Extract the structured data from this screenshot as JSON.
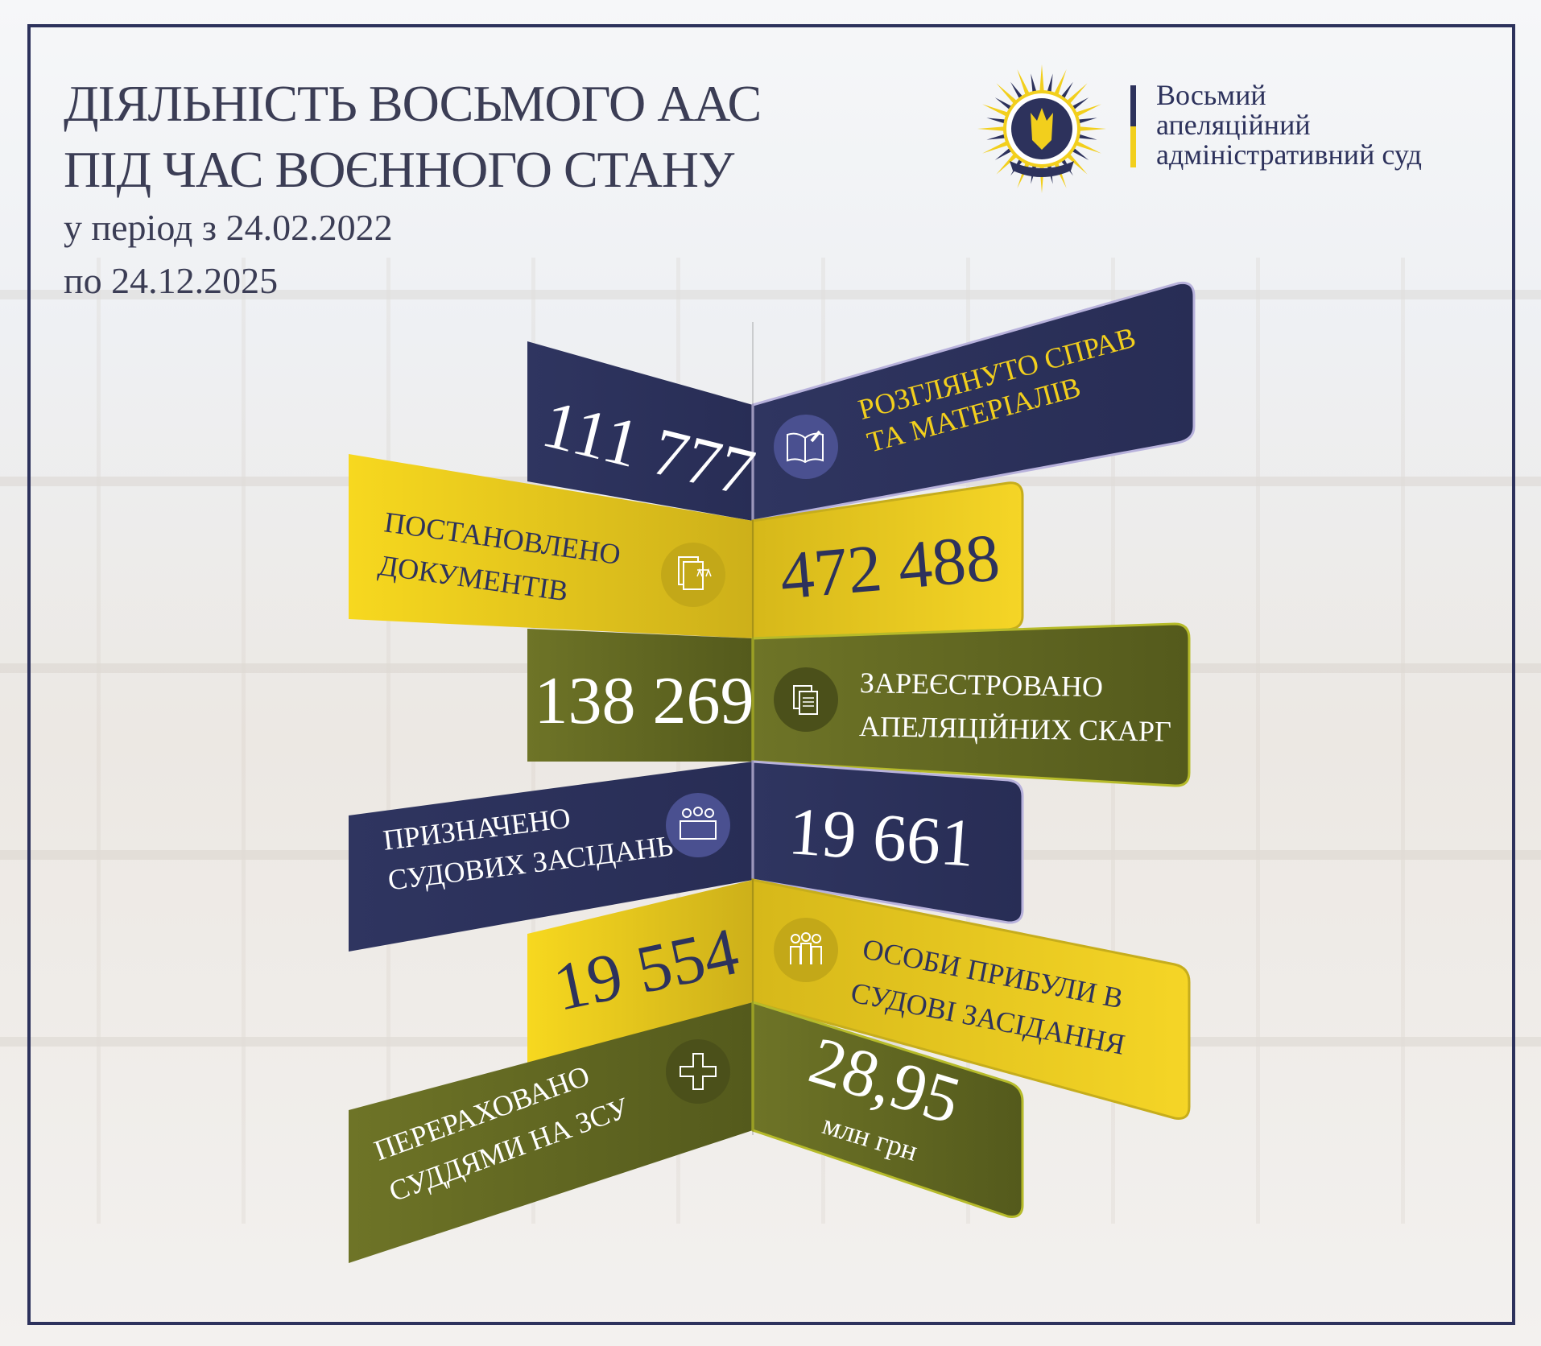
{
  "header": {
    "title_line1": "ДІЯЛЬНІСТЬ ВОСЬМОГО ААС",
    "title_line2": "ПІД ЧАС ВОЄННОГО СТАНУ",
    "period_line1": "у період з 24.02.2022",
    "period_line2": "по 24.12.2025"
  },
  "logo": {
    "emblem_text": "Восьмий апеляційний адміністративний суд",
    "name_line1": "Восьмий",
    "name_line2": "апеляційний",
    "name_line3": "адміністративний суд"
  },
  "colors": {
    "navy": "#2d325c",
    "yellow": "#f2d020",
    "olive": "#626823",
    "title": "#3b3d55"
  },
  "stats": [
    {
      "value": "111 777",
      "label_line1": "РОЗГЛЯНУТО СПРАВ",
      "label_line2": "ТА МАТЕРІАЛІВ",
      "icon": "open-book-gavel-icon"
    },
    {
      "value": "472 488",
      "label_line1": "ПОСТАНОВЛЕНО",
      "label_line2": "ДОКУМЕНТІВ",
      "icon": "documents-scales-icon"
    },
    {
      "value": "138 269",
      "label_line1": "ЗАРЕЄСТРОВАНО",
      "label_line2": "АПЕЛЯЦІЙНИХ СКАРГ",
      "icon": "documents-copy-icon"
    },
    {
      "value": "19 661",
      "label_line1": "ПРИЗНАЧЕНО",
      "label_line2": "СУДОВИХ ЗАСІДАНЬ",
      "icon": "courtroom-judges-icon"
    },
    {
      "value": "19 554",
      "label_line1": "ОСОБИ ПРИБУЛИ В",
      "label_line2": "СУДОВІ ЗАСІДАННЯ",
      "icon": "people-family-icon"
    },
    {
      "value": "28,95",
      "unit": "млн грн",
      "label_line1": "ПЕРЕРАХОВАНО",
      "label_line2": "СУДДЯМИ НА ЗСУ",
      "icon": "military-cross-icon"
    }
  ]
}
